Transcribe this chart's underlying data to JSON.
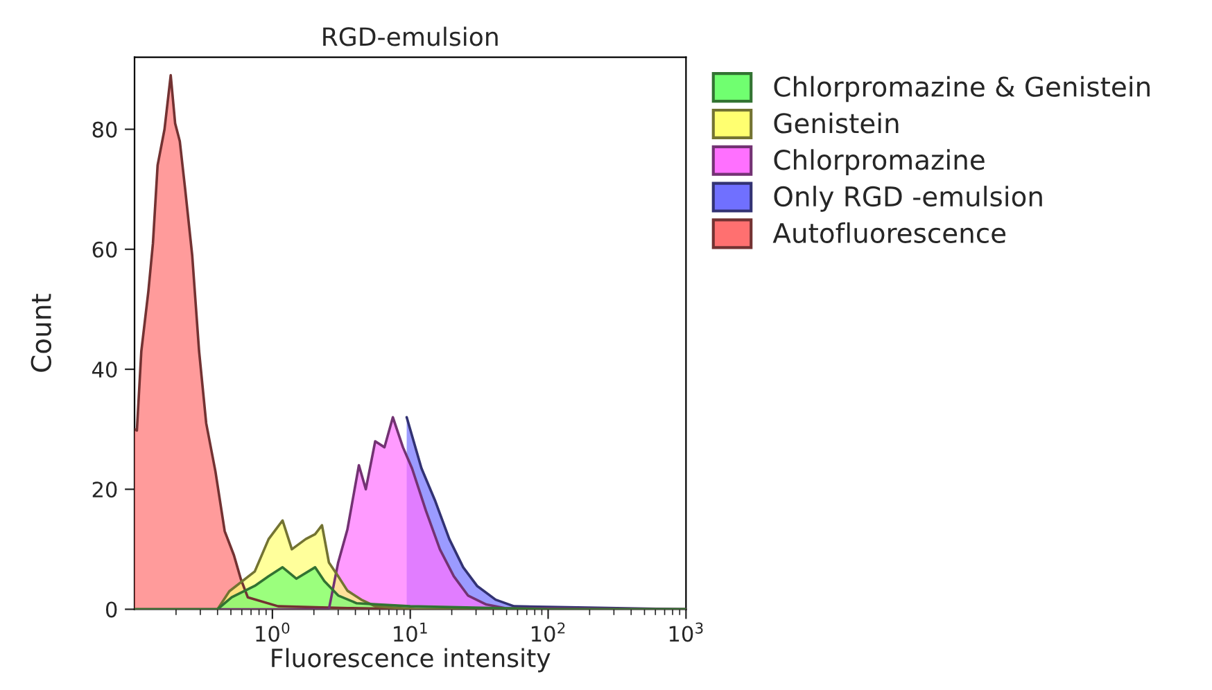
{
  "chart_data": {
    "type": "area",
    "title": "RGD-emulsion",
    "xlabel": "Fluorescence intensity",
    "ylabel": "Count",
    "log": "x",
    "xlim": [
      0.1,
      1000
    ],
    "xticks": [
      {
        "value": 1,
        "label": "10$^{0}$"
      },
      {
        "value": 10,
        "label": "10$^{1}$"
      },
      {
        "value": 100,
        "label": "10$^{2}$"
      },
      {
        "value": 1000,
        "label": "10$^{3}$"
      }
    ],
    "ylim": [
      0,
      92
    ],
    "yticks": [
      0,
      20,
      40,
      60,
      80
    ],
    "grid": false,
    "legend": "right",
    "series": [
      {
        "name": "Chlorpromazine & Genistein",
        "color": "#70ff70",
        "x": [
          0.1,
          0.4,
          0.507,
          0.745,
          0.939,
          1.185,
          1.494,
          2.04,
          2.38,
          3.0,
          4.09,
          10,
          100,
          1000
        ],
        "values": [
          0,
          0,
          2,
          3.9,
          5.5,
          7,
          5.1,
          7,
          4.7,
          2.3,
          1,
          0.5,
          0,
          0
        ]
      },
      {
        "name": "Genistein",
        "color": "#ffff70",
        "x": [
          0.1,
          0.4,
          0.487,
          0.745,
          0.939,
          1.185,
          1.384,
          1.745,
          2.04,
          2.29,
          2.57,
          3.0,
          3.5,
          4.41,
          5.57,
          11,
          1000
        ],
        "values": [
          0,
          0,
          3,
          6.3,
          11.7,
          14.8,
          10,
          11.7,
          12.5,
          14,
          7.8,
          5.5,
          3.1,
          1.6,
          0.5,
          0,
          0
        ]
      },
      {
        "name": "Chlorpromazine",
        "color": "#ff70ff",
        "x": [
          0.1,
          2.57,
          3.0,
          3.5,
          4.24,
          4.76,
          5.57,
          6.5,
          7.48,
          8.85,
          10.3,
          13.0,
          16.4,
          20.7,
          26.2,
          35.6,
          48.5,
          1000
        ],
        "values": [
          0,
          0,
          7.8,
          13.3,
          24,
          20,
          28,
          27,
          32,
          27,
          23.5,
          16.4,
          10,
          5.5,
          2.3,
          0.8,
          0.2,
          0
        ]
      },
      {
        "name": "Only RGD -emulsion",
        "color": "#7070ff",
        "x": [
          9.42,
          12.06,
          15.2,
          19.2,
          24.2,
          30.5,
          41.6,
          56.6,
          1000
        ],
        "values": [
          32,
          23.5,
          18,
          11.7,
          7,
          3.9,
          1.6,
          0.5,
          0
        ]
      },
      {
        "name": "Autofluorescence",
        "color": "#ff7070",
        "x": [
          0.1,
          0.104,
          0.112,
          0.126,
          0.136,
          0.147,
          0.165,
          0.183,
          0.197,
          0.213,
          0.233,
          0.262,
          0.294,
          0.331,
          0.386,
          0.451,
          0.526,
          0.591,
          0.663,
          1.1,
          3.5,
          11,
          1000
        ],
        "values": [
          30,
          29.8,
          43,
          53,
          61,
          74,
          80,
          89,
          81,
          78,
          70,
          59,
          43,
          31,
          23,
          13,
          9,
          5,
          2,
          0.5,
          0.2,
          0,
          0
        ]
      }
    ]
  }
}
